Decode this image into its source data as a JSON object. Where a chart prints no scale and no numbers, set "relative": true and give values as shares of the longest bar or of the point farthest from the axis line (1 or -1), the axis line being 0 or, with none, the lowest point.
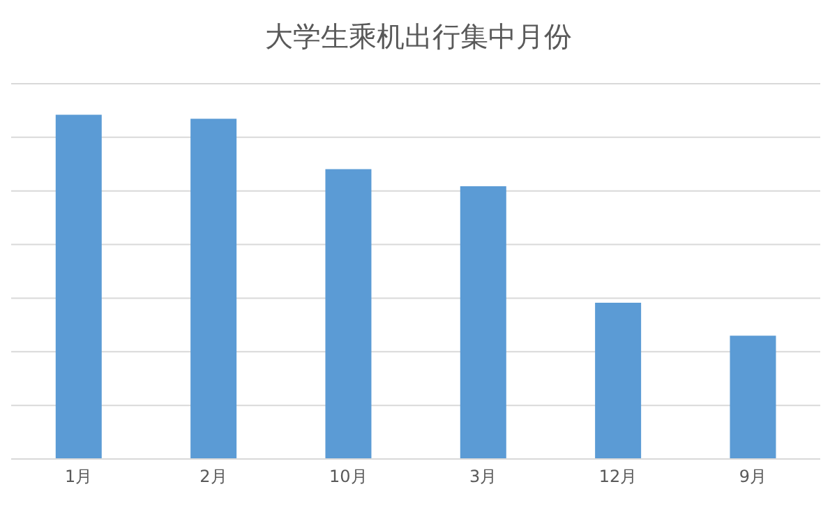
{
  "chart_data": {
    "type": "bar",
    "title": "大学生乘机出行集中月份",
    "categories": [
      "1月",
      "2月",
      "10月",
      "3月",
      "12月",
      "9月"
    ],
    "values": [
      1,
      0.988,
      0.842,
      0.792,
      0.454,
      0.358
    ],
    "color": "#5b9bd5",
    "relative": true,
    "grid": "y",
    "legend": false
  }
}
